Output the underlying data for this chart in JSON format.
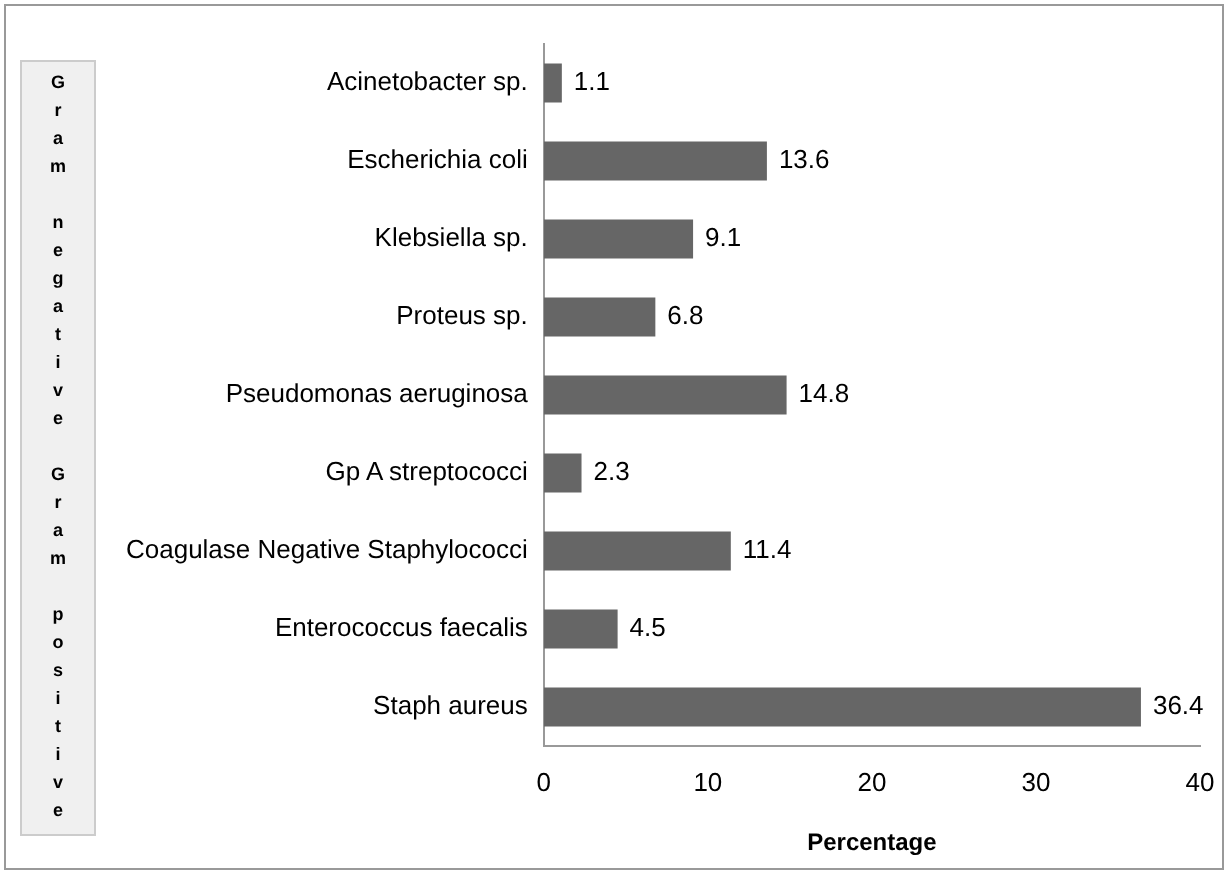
{
  "chart_data": {
    "type": "bar",
    "orientation": "horizontal",
    "xlabel": "Percentage",
    "ylabel": "Gram negative Gram positive",
    "categories": [
      "Acinetobacter sp.",
      "Escherichia coli",
      "Klebsiella sp.",
      "Proteus sp.",
      "Pseudomonas aeruginosa",
      "Gp A streptococci",
      "Coagulase Negative Staphylococci",
      "Enterococcus faecalis",
      "Staph aureus"
    ],
    "values": [
      1.1,
      13.6,
      9.1,
      6.8,
      14.8,
      2.3,
      11.4,
      4.5,
      36.4
    ],
    "color": "#666666",
    "xlim": [
      0,
      40
    ],
    "xticks": [
      0,
      10,
      20,
      30,
      40
    ],
    "grid": false,
    "legend": false,
    "data_labels": true
  }
}
